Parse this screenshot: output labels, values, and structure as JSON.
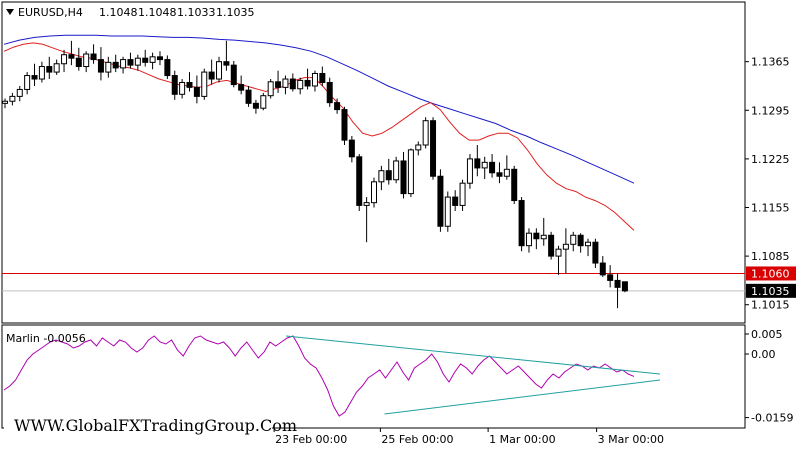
{
  "header": {
    "symbol": "EURUSD,H4",
    "open": "1.1048",
    "high": "1.1048",
    "low": "1.1033",
    "close": "1.1035"
  },
  "price_axis": {
    "ticks": [
      "1.1365",
      "1.1295",
      "1.1225",
      "1.1155",
      "1.1085",
      "1.1015"
    ],
    "level_label": "1.1060",
    "current_label": "1.1035"
  },
  "indicator": {
    "label": "Marlin -0.0056",
    "ticks": [
      "0.005",
      "0.00",
      "-0.0159"
    ]
  },
  "time_axis": {
    "labels": [
      "23 Feb 00:00",
      "25 Feb 00:00",
      "1 Mar 00:00",
      "3 Mar 00:00"
    ]
  },
  "watermark": "WWW.GlobalFXTradingGroup.Com",
  "colors": {
    "bull": "#ffffff",
    "bear": "#000000",
    "ma_fast": "#e02020",
    "ma_slow": "#1a1ac8",
    "level": "#d80000",
    "oscillator": "#b000b0",
    "trendline": "#20a0a0"
  },
  "chart_data": {
    "type": "line",
    "candles": [
      [
        1.1305,
        1.1312,
        1.1298,
        1.1308
      ],
      [
        1.1308,
        1.132,
        1.1302,
        1.1315
      ],
      [
        1.1315,
        1.133,
        1.1308,
        1.1325
      ],
      [
        1.1325,
        1.135,
        1.1318,
        1.1345
      ],
      [
        1.1345,
        1.1362,
        1.133,
        1.134
      ],
      [
        1.134,
        1.1365,
        1.1335,
        1.1358
      ],
      [
        1.1358,
        1.1372,
        1.134,
        1.135
      ],
      [
        1.135,
        1.1368,
        1.1346,
        1.1362
      ],
      [
        1.1362,
        1.1382,
        1.135,
        1.1375
      ],
      [
        1.1375,
        1.1395,
        1.136,
        1.137
      ],
      [
        1.137,
        1.1385,
        1.1352,
        1.1358
      ],
      [
        1.1358,
        1.138,
        1.135,
        1.1376
      ],
      [
        1.1376,
        1.139,
        1.1362,
        1.1368
      ],
      [
        1.1368,
        1.1386,
        1.1338,
        1.135
      ],
      [
        1.135,
        1.1372,
        1.1342,
        1.1364
      ],
      [
        1.1364,
        1.1375,
        1.135,
        1.1356
      ],
      [
        1.1356,
        1.1372,
        1.1348,
        1.1368
      ],
      [
        1.1368,
        1.1378,
        1.1355,
        1.136
      ],
      [
        1.136,
        1.1375,
        1.1352,
        1.137
      ],
      [
        1.137,
        1.1382,
        1.1358,
        1.1364
      ],
      [
        1.1364,
        1.1378,
        1.1354,
        1.1372
      ],
      [
        1.1372,
        1.138,
        1.136,
        1.1368
      ],
      [
        1.1368,
        1.1374,
        1.134,
        1.1345
      ],
      [
        1.1345,
        1.1352,
        1.131,
        1.1318
      ],
      [
        1.1318,
        1.134,
        1.1312,
        1.1335
      ],
      [
        1.1335,
        1.135,
        1.1322,
        1.1328
      ],
      [
        1.1328,
        1.1345,
        1.1305,
        1.1315
      ],
      [
        1.1315,
        1.1355,
        1.131,
        1.135
      ],
      [
        1.135,
        1.1368,
        1.1332,
        1.134
      ],
      [
        1.134,
        1.1372,
        1.1335,
        1.1365
      ],
      [
        1.1365,
        1.1395,
        1.1352,
        1.136
      ],
      [
        1.136,
        1.1366,
        1.1328,
        1.1332
      ],
      [
        1.1332,
        1.1345,
        1.1318,
        1.1324
      ],
      [
        1.1324,
        1.133,
        1.13,
        1.1305
      ],
      [
        1.1305,
        1.131,
        1.129,
        1.1298
      ],
      [
        1.1298,
        1.132,
        1.1295,
        1.1316
      ],
      [
        1.1316,
        1.134,
        1.1312,
        1.1336
      ],
      [
        1.1336,
        1.1352,
        1.132,
        1.1328
      ],
      [
        1.1328,
        1.1345,
        1.1318,
        1.134
      ],
      [
        1.134,
        1.1348,
        1.1322,
        1.1326
      ],
      [
        1.1326,
        1.1342,
        1.1318,
        1.1338
      ],
      [
        1.1338,
        1.1355,
        1.1325,
        1.133
      ],
      [
        1.133,
        1.1352,
        1.1322,
        1.1348
      ],
      [
        1.1348,
        1.1358,
        1.133,
        1.1335
      ],
      [
        1.1335,
        1.1342,
        1.13,
        1.1306
      ],
      [
        1.1306,
        1.1312,
        1.129,
        1.1296
      ],
      [
        1.1296,
        1.13,
        1.1245,
        1.1252
      ],
      [
        1.1252,
        1.1258,
        1.122,
        1.1228
      ],
      [
        1.1228,
        1.1232,
        1.115,
        1.1158
      ],
      [
        1.1158,
        1.117,
        1.1105,
        1.1162
      ],
      [
        1.1162,
        1.1198,
        1.1155,
        1.1192
      ],
      [
        1.1192,
        1.1215,
        1.118,
        1.1208
      ],
      [
        1.1208,
        1.1225,
        1.1188,
        1.1195
      ],
      [
        1.1195,
        1.1228,
        1.119,
        1.1222
      ],
      [
        1.1222,
        1.1235,
        1.1168,
        1.1175
      ],
      [
        1.1175,
        1.124,
        1.117,
        1.1238
      ],
      [
        1.1238,
        1.125,
        1.123,
        1.1245
      ],
      [
        1.1245,
        1.1285,
        1.124,
        1.128
      ],
      [
        1.128,
        1.1285,
        1.1195,
        1.12
      ],
      [
        1.12,
        1.121,
        1.112,
        1.1128
      ],
      [
        1.1128,
        1.1178,
        1.112,
        1.117
      ],
      [
        1.117,
        1.118,
        1.115,
        1.1158
      ],
      [
        1.1158,
        1.1195,
        1.115,
        1.119
      ],
      [
        1.119,
        1.1232,
        1.1182,
        1.1225
      ],
      [
        1.1225,
        1.1245,
        1.12,
        1.1212
      ],
      [
        1.1212,
        1.1228,
        1.1196,
        1.122
      ],
      [
        1.122,
        1.1232,
        1.1198,
        1.1205
      ],
      [
        1.1205,
        1.122,
        1.119,
        1.12
      ],
      [
        1.12,
        1.123,
        1.1195,
        1.121
      ],
      [
        1.121,
        1.1215,
        1.116,
        1.1165
      ],
      [
        1.1165,
        1.117,
        1.1092,
        1.11
      ],
      [
        1.11,
        1.1125,
        1.109,
        1.1118
      ],
      [
        1.1118,
        1.1125,
        1.1095,
        1.111
      ],
      [
        1.111,
        1.114,
        1.11,
        1.1115
      ],
      [
        1.1115,
        1.112,
        1.108,
        1.1085
      ],
      [
        1.1085,
        1.11,
        1.1058,
        1.1095
      ],
      [
        1.1095,
        1.1125,
        1.106,
        1.1102
      ],
      [
        1.1102,
        1.112,
        1.1092,
        1.1115
      ],
      [
        1.1115,
        1.1118,
        1.109,
        1.11
      ],
      [
        1.11,
        1.111,
        1.1085,
        1.1105
      ],
      [
        1.1105,
        1.111,
        1.1068,
        1.1075
      ],
      [
        1.1075,
        1.1085,
        1.1055,
        1.1058
      ],
      [
        1.1058,
        1.1072,
        1.104,
        1.105
      ],
      [
        1.105,
        1.106,
        1.101,
        1.104
      ],
      [
        1.1048,
        1.1048,
        1.1033,
        1.1035
      ]
    ],
    "ma_fast": [
      1.138,
      1.1386,
      1.139,
      1.1392,
      1.139,
      1.1385,
      1.138,
      1.1376,
      1.1372,
      1.137,
      1.1366,
      1.1362,
      1.1358,
      1.1356,
      1.1352,
      1.1346,
      1.134,
      1.1336,
      1.1332,
      1.133,
      1.1328,
      1.133,
      1.1336,
      1.1338,
      1.1334,
      1.133,
      1.1326,
      1.1322,
      1.1326,
      1.133,
      1.1338,
      1.1342,
      1.1342,
      1.1328,
      1.1312,
      1.1298,
      1.1278,
      1.1262,
      1.1258,
      1.1262,
      1.127,
      1.128,
      1.129,
      1.13,
      1.1306,
      1.1296,
      1.1278,
      1.1262,
      1.1252,
      1.1252,
      1.1258,
      1.1262,
      1.1262,
      1.1255,
      1.1238,
      1.1218,
      1.1202,
      1.119,
      1.1182,
      1.1178,
      1.117,
      1.1165,
      1.1158,
      1.1148,
      1.1135,
      1.1122
    ],
    "ma_slow": [
      1.139,
      1.1396,
      1.14,
      1.1402,
      1.1403,
      1.1403,
      1.1403,
      1.1402,
      1.1402,
      1.1402,
      1.1401,
      1.14,
      1.14,
      1.1399,
      1.1397,
      1.1396,
      1.1394,
      1.1392,
      1.1389,
      1.1385,
      1.138,
      1.1372,
      1.1362,
      1.1352,
      1.1341,
      1.133,
      1.1321,
      1.1312,
      1.1304,
      1.1297,
      1.129,
      1.1283,
      1.1276,
      1.1266,
      1.1258,
      1.1248,
      1.1239,
      1.123,
      1.122,
      1.121,
      1.12,
      1.119
    ],
    "level": 1.106,
    "price_range": [
      1.0993,
      1.1425
    ],
    "marlin": [
      -0.009,
      -0.008,
      -0.0065,
      -0.004,
      -0.0015,
      0.0,
      0.001,
      0.002,
      0.003,
      0.0035,
      0.003,
      0.0025,
      0.0015,
      0.002,
      0.003,
      0.0035,
      0.002,
      0.004,
      0.003,
      0.002,
      0.0035,
      0.003,
      0.0015,
      0.0005,
      0.0015,
      0.0035,
      0.0045,
      0.003,
      0.0025,
      0.0035,
      0.001,
      -0.0005,
      0.002,
      0.004,
      0.0045,
      0.0035,
      0.003,
      0.0025,
      0.003,
      0.0015,
      -0.0005,
      0.0015,
      0.003,
      0.001,
      -0.001,
      0.0005,
      0.003,
      0.002,
      0.003,
      0.004,
      0.0045,
      0.002,
      -0.001,
      -0.0025,
      -0.0035,
      -0.006,
      -0.009,
      -0.013,
      -0.0155,
      -0.0145,
      -0.012,
      -0.0095,
      -0.008,
      -0.006,
      -0.005,
      -0.004,
      -0.006,
      -0.004,
      -0.002,
      -0.0045,
      -0.0065,
      -0.0035,
      -0.0025,
      -0.0015,
      0.0,
      -0.002,
      -0.005,
      -0.007,
      -0.0045,
      -0.0025,
      -0.0035,
      -0.005,
      -0.003,
      -0.0015,
      -0.0005,
      -0.002,
      -0.0035,
      -0.005,
      -0.004,
      -0.003,
      -0.0045,
      -0.006,
      -0.0075,
      -0.0085,
      -0.0065,
      -0.005,
      -0.006,
      -0.0045,
      -0.0035,
      -0.0025,
      -0.003,
      -0.004,
      -0.003,
      -0.0035,
      -0.0025,
      -0.0035,
      -0.0045,
      -0.004,
      -0.005,
      -0.0056
    ],
    "marlin_range": [
      -0.0175,
      0.0055
    ],
    "trendlines": [
      {
        "from": [
          0.43,
          0.0045
        ],
        "to": [
          1.0,
          -0.005
        ]
      },
      {
        "from": [
          0.58,
          -0.015
        ],
        "to": [
          1.0,
          -0.0065
        ]
      }
    ]
  }
}
